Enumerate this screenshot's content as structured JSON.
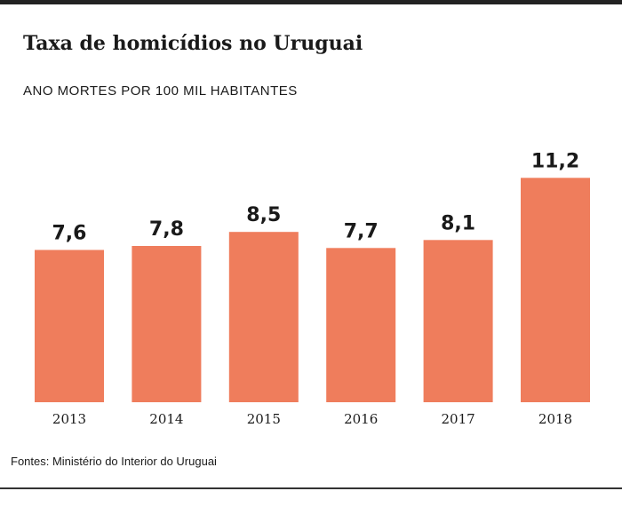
{
  "chart_data": {
    "type": "bar",
    "title": "Taxa de homicídios no Uruguai",
    "subtitle": "ANO MORTES POR 100 MIL HABITANTES",
    "categories": [
      "2013",
      "2014",
      "2015",
      "2016",
      "2017",
      "2018"
    ],
    "values": [
      7.6,
      7.8,
      8.5,
      7.7,
      8.1,
      11.2
    ],
    "value_labels": [
      "7,6",
      "7,8",
      "8,5",
      "7,7",
      "8,1",
      "11,2"
    ],
    "xlabel": "",
    "ylabel": "",
    "ylim": [
      0,
      12.5
    ],
    "grid": false,
    "legend": "none",
    "bar_color": "#ef7d5c"
  },
  "source": "Fontes: Ministério do Interior do Uruguai"
}
